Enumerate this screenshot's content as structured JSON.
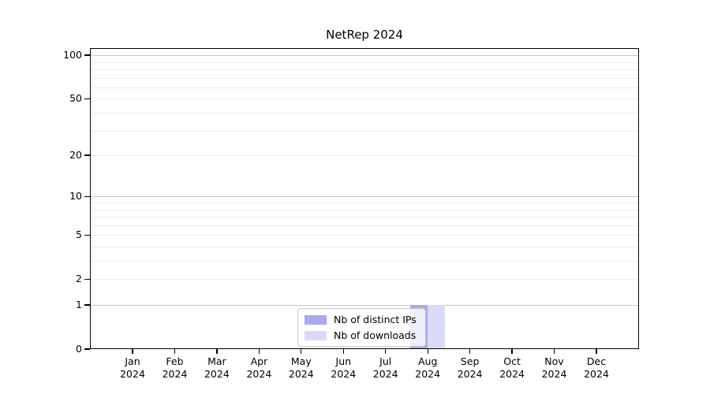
{
  "chart": {
    "title": "NetRep 2024"
  },
  "legend": {
    "items": [
      {
        "label": "Nb of distinct IPs",
        "color": "#a9a9f2"
      },
      {
        "label": "Nb of downloads",
        "color": "#dadaf8"
      }
    ]
  },
  "colors": {
    "axis": "#000000",
    "grid_major": "#c8c8c8",
    "grid_minor": "#ebebeb",
    "background": "#ffffff",
    "legend_border": "#c9c9c9"
  },
  "chart_data": {
    "type": "bar",
    "title": "NetRep 2024",
    "categories": [
      "Jan 2024",
      "Feb 2024",
      "Mar 2024",
      "Apr 2024",
      "May 2024",
      "Jun 2024",
      "Jul 2024",
      "Aug 2024",
      "Sep 2024",
      "Oct 2024",
      "Nov 2024",
      "Dec 2024"
    ],
    "series": [
      {
        "name": "Nb of distinct IPs",
        "color": "#a9a9f2",
        "values": [
          0,
          0,
          0,
          0,
          0,
          0,
          0,
          1,
          0,
          0,
          0,
          0
        ]
      },
      {
        "name": "Nb of downloads",
        "color": "#dadaf8",
        "values": [
          0,
          0,
          0,
          0,
          0,
          0,
          0,
          1,
          0,
          0,
          0,
          0
        ]
      }
    ],
    "xlabel": "",
    "ylabel": "",
    "yscale": "symlog-log1p",
    "ylim": [
      0,
      112
    ],
    "yticks_labeled": [
      0,
      1,
      2,
      5,
      10,
      20,
      50,
      100
    ],
    "gridlines_major": [
      1,
      10,
      100
    ],
    "gridlines_minor": [
      2,
      3,
      4,
      5,
      6,
      7,
      8,
      9,
      20,
      30,
      40,
      50,
      60,
      70,
      80,
      90
    ],
    "grid": "horizontal only",
    "legend_position": "lower center"
  }
}
